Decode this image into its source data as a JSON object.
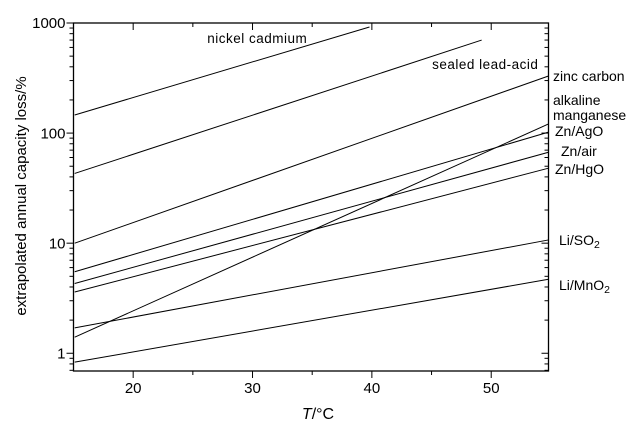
{
  "figure": {
    "background": "#ffffff",
    "stroke_color": "#000000",
    "text_color": "#000000"
  },
  "axes": {
    "x_title_italic": "T",
    "x_title_rest": "/°C",
    "y_title": "extrapolated annual capacity loss/%"
  },
  "chart_data": {
    "type": "line",
    "title": "",
    "xlabel": "T/°C",
    "ylabel": "extrapolated annual capacity loss/%",
    "log_y": true,
    "grid": false,
    "xlim": [
      15,
      54.8
    ],
    "ylim": [
      0.69,
      1000
    ],
    "x_major_ticks": [
      20,
      30,
      40,
      50
    ],
    "x_major_tick_labels": [
      "20",
      "30",
      "40",
      "50"
    ],
    "x_minor_ticks": [
      25,
      35,
      45
    ],
    "y_major_ticks": [
      1,
      10,
      100,
      1000
    ],
    "y_major_tick_labels": [
      "1",
      "10",
      "100",
      "1000"
    ],
    "legend_position": "right-margin",
    "series": [
      {
        "name": "nickel cadmium",
        "x": [
          15.1,
          39.8
        ],
        "y": [
          146,
          920
        ]
      },
      {
        "name": "sealed lead-acid",
        "x": [
          15.1,
          49.2
        ],
        "y": [
          43,
          700
        ]
      },
      {
        "name": "zinc carbon",
        "x": [
          15.1,
          54.8
        ],
        "y": [
          10,
          330
        ]
      },
      {
        "name": "alkaline manganese",
        "x": [
          15.1,
          54.8
        ],
        "y": [
          1.4,
          121
        ]
      },
      {
        "name": "Zn/AgO",
        "x": [
          15.1,
          54.8
        ],
        "y": [
          5.5,
          102
        ]
      },
      {
        "name": "Zn/air",
        "x": [
          15.1,
          54.8
        ],
        "y": [
          4.3,
          67
        ]
      },
      {
        "name": "Zn/HgO",
        "x": [
          15.1,
          54.8
        ],
        "y": [
          3.6,
          48
        ]
      },
      {
        "name": "Li/SO2",
        "x": [
          15.1,
          54.8
        ],
        "y": [
          1.7,
          10.7
        ]
      },
      {
        "name": "Li/MnO2",
        "x": [
          15.1,
          54.8
        ],
        "y": [
          0.83,
          4.7
        ]
      }
    ],
    "inplot_labels": [
      {
        "text": "nickel cadmium",
        "t": 30.4,
        "v": 720
      },
      {
        "text": "sealed lead-acid",
        "t": 49.5,
        "v": 420
      }
    ],
    "right_labels": [
      {
        "text": "zinc carbon",
        "v": 330,
        "indent": 0
      },
      {
        "text": "alkaline",
        "v": 199,
        "indent": 0
      },
      {
        "text": "manganese",
        "v": 146,
        "indent": 0
      },
      {
        "text": "Zn/AgO",
        "v": 104,
        "indent": 2
      },
      {
        "text": "Zn/air",
        "v": 68.5,
        "indent": 8
      },
      {
        "text": "Zn/HgO",
        "v": 47,
        "indent": 2
      },
      {
        "text": "Li/SO",
        "sub": "2",
        "v": 10.7,
        "indent": 6
      },
      {
        "text": "Li/MnO",
        "sub": "2",
        "v": 4.15,
        "indent": 6
      }
    ]
  }
}
